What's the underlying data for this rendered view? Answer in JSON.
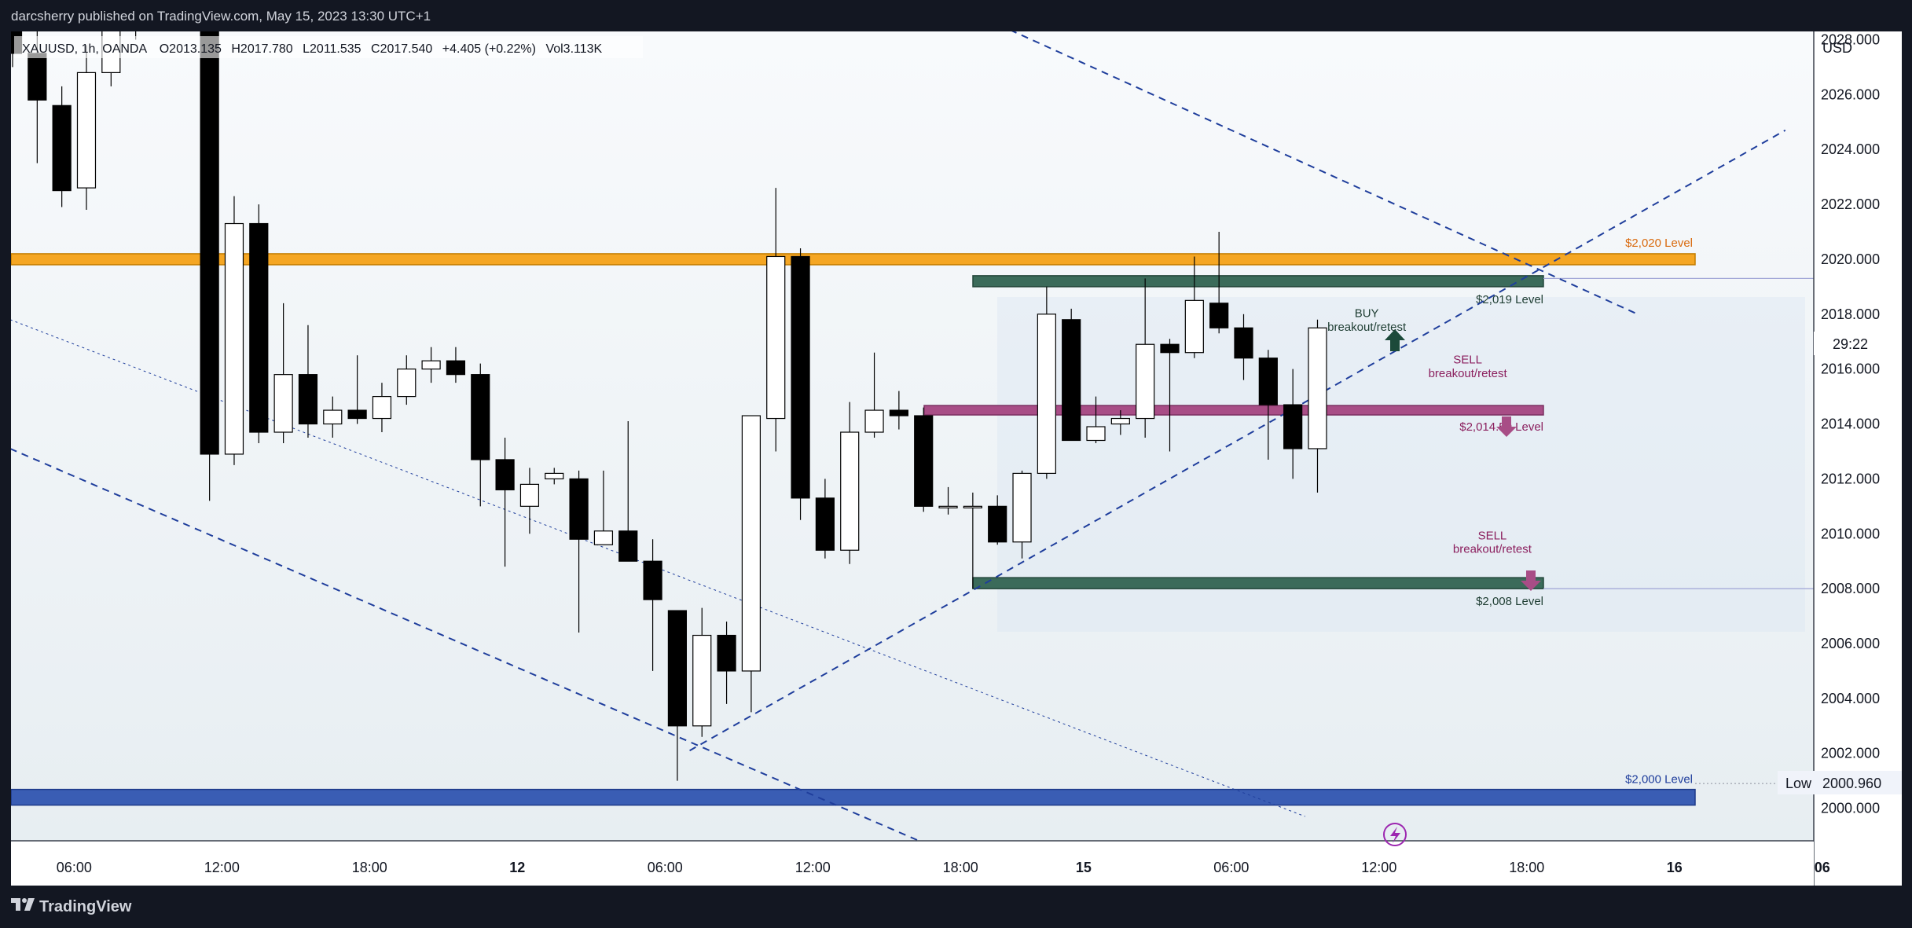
{
  "header": {
    "published_text": "darcsherry published on TradingView.com, May 15, 2023 13:30 UTC+1"
  },
  "ohlc": {
    "symbol": "XAUUSD, 1h, OANDA",
    "open": "O2013.135",
    "high": "H2017.780",
    "low": "L2011.535",
    "close": "C2017.540",
    "change": "+4.405 (+0.22%)",
    "volume": "Vol3.113K"
  },
  "price_axis": {
    "currency": "USD",
    "countdown": "29:22",
    "low_tag_label": "Low",
    "low_tag_value": "2000.960"
  },
  "footer": {
    "brand": "TradingView"
  },
  "colors": {
    "orange_level": "#f5a623",
    "green_level": "#3b6b5a",
    "pink_level": "#a84d86",
    "blue_level": "#3a5db4",
    "trend_line": "#1f3e9c",
    "background": "#131722"
  },
  "chart_data": {
    "type": "candlestick",
    "symbol": "XAUUSD",
    "timeframe": "1h",
    "ylim": [
      1998.5,
      2028.5
    ],
    "yticks": [
      2000,
      2002,
      2004,
      2006,
      2008,
      2010,
      2012,
      2014,
      2016,
      2018,
      2020,
      2022,
      2024,
      2026,
      2028
    ],
    "x_ticks": [
      {
        "label": "06:00",
        "x": 2.5
      },
      {
        "label": "12:00",
        "x": 8.5
      },
      {
        "label": "18:00",
        "x": 14.5
      },
      {
        "label": "12",
        "x": 20.5
      },
      {
        "label": "06:00",
        "x": 26.5
      },
      {
        "label": "12:00",
        "x": 32.5
      },
      {
        "label": "18:00",
        "x": 38.5
      },
      {
        "label": "15",
        "x": 43.5
      },
      {
        "label": "06:00",
        "x": 49.5
      },
      {
        "label": "12:00",
        "x": 55.5
      },
      {
        "label": "18:00",
        "x": 61.5
      },
      {
        "label": "16",
        "x": 67.5
      },
      {
        "label": "06",
        "x": 73.5
      }
    ],
    "candles": [
      [
        2031.0,
        2032.0,
        2027.0,
        2027.5
      ],
      [
        2027.5,
        2028.5,
        2023.5,
        2025.8
      ],
      [
        2025.6,
        2026.3,
        2021.9,
        2022.5
      ],
      [
        2022.6,
        2027.8,
        2021.8,
        2026.8
      ],
      [
        2026.8,
        2030.0,
        2026.3,
        2029.5
      ],
      [
        2029.0,
        2030.5,
        2028.0,
        2029.5
      ],
      [
        2029.5,
        2030.5,
        2028.5,
        2030.0
      ],
      [
        2030.0,
        2031.0,
        2029.5,
        2030.5
      ],
      [
        2030.5,
        2031.0,
        2011.2,
        2012.9
      ],
      [
        2012.9,
        2022.3,
        2012.5,
        2021.3
      ],
      [
        2021.3,
        2022.0,
        2013.3,
        2013.7
      ],
      [
        2013.7,
        2018.4,
        2013.3,
        2015.8
      ],
      [
        2015.8,
        2017.6,
        2013.5,
        2014.0
      ],
      [
        2014.0,
        2015.0,
        2013.5,
        2014.5
      ],
      [
        2014.5,
        2016.5,
        2014.0,
        2014.2
      ],
      [
        2014.2,
        2015.5,
        2013.7,
        2015.0
      ],
      [
        2015.0,
        2016.5,
        2014.7,
        2016.0
      ],
      [
        2016.0,
        2016.8,
        2015.5,
        2016.3
      ],
      [
        2016.3,
        2016.8,
        2015.5,
        2015.8
      ],
      [
        2015.8,
        2016.2,
        2011.0,
        2012.7
      ],
      [
        2012.7,
        2013.5,
        2008.8,
        2011.6
      ],
      [
        2011.0,
        2012.4,
        2010.0,
        2011.8
      ],
      [
        2012.0,
        2012.4,
        2011.8,
        2012.2
      ],
      [
        2012.0,
        2012.3,
        2006.4,
        2009.8
      ],
      [
        2009.6,
        2012.3,
        2009.6,
        2010.1
      ],
      [
        2010.1,
        2014.1,
        2009.0,
        2009.0
      ],
      [
        2009.0,
        2009.8,
        2005.0,
        2007.6
      ],
      [
        2007.2,
        2007.2,
        2001.0,
        2003.0
      ],
      [
        2003.0,
        2007.3,
        2002.6,
        2006.3
      ],
      [
        2006.3,
        2006.8,
        2003.8,
        2005.0
      ],
      [
        2005.0,
        2014.2,
        2003.5,
        2014.3
      ],
      [
        2014.2,
        2022.6,
        2013.0,
        2020.1
      ],
      [
        2020.1,
        2020.4,
        2010.5,
        2011.3
      ],
      [
        2011.3,
        2012.0,
        2009.1,
        2009.4
      ],
      [
        2009.4,
        2014.8,
        2008.9,
        2013.7
      ],
      [
        2013.7,
        2016.6,
        2013.5,
        2014.5
      ],
      [
        2014.5,
        2015.2,
        2013.8,
        2014.3
      ],
      [
        2014.3,
        2014.6,
        2010.8,
        2011.0
      ],
      [
        2011.0,
        2011.7,
        2010.7,
        2011.0
      ],
      [
        2011.0,
        2011.5,
        2008.0,
        2011.0
      ],
      [
        2011.0,
        2011.4,
        2009.6,
        2009.7
      ],
      [
        2009.7,
        2012.3,
        2009.1,
        2012.2
      ],
      [
        2012.2,
        2019.0,
        2012.0,
        2018.0
      ],
      [
        2017.8,
        2018.2,
        2013.4,
        2013.4
      ],
      [
        2013.4,
        2015.0,
        2013.3,
        2013.9
      ],
      [
        2014.0,
        2014.5,
        2013.6,
        2014.2
      ],
      [
        2014.2,
        2019.3,
        2013.5,
        2016.9
      ],
      [
        2016.9,
        2017.1,
        2013.0,
        2016.6
      ],
      [
        2016.6,
        2020.1,
        2016.4,
        2018.5
      ],
      [
        2018.4,
        2021.0,
        2017.3,
        2017.5
      ],
      [
        2017.5,
        2018.0,
        2015.6,
        2016.4
      ],
      [
        2016.4,
        2016.7,
        2012.7,
        2014.7
      ],
      [
        2014.7,
        2016.0,
        2012.0,
        2013.1
      ],
      [
        2013.1,
        2017.8,
        2011.5,
        2017.5
      ]
    ],
    "levels": [
      {
        "label": "$2,020 Level",
        "price": 2020.0
      },
      {
        "label": "$2,019 Level",
        "price": 2019.2
      },
      {
        "label": "$2,014.50 Level",
        "price": 2014.5
      },
      {
        "label": "$2,008 Level",
        "price": 2008.2
      },
      {
        "label": "$2,000 Level",
        "price": 2000.4
      }
    ],
    "annotations": [
      {
        "text": "BUY",
        "x": 55.0,
        "y": 2017.9
      },
      {
        "text": "breakout/retest",
        "x": 55.0,
        "y": 2017.4
      },
      {
        "text": "SELL",
        "x": 59.1,
        "y": 2016.2
      },
      {
        "text": "breakout/retest",
        "x": 59.1,
        "y": 2015.7
      },
      {
        "text": "SELL",
        "x": 60.1,
        "y": 2009.8
      },
      {
        "text": "breakout/retest",
        "x": 60.1,
        "y": 2009.3
      }
    ],
    "trend_lines": [
      {
        "style": "dashed",
        "from": [
          34.0,
          2031.0
        ],
        "to": [
          66.0,
          2018.0
        ]
      },
      {
        "style": "dashed",
        "from": [
          -0.1,
          2013.1
        ],
        "to": [
          41.5,
          1997.0
        ]
      },
      {
        "style": "dashed",
        "from": [
          27.5,
          2002.1
        ],
        "to": [
          72.0,
          2024.7
        ]
      },
      {
        "style": "dotted",
        "from": [
          -0.1,
          2017.8
        ],
        "to": [
          52.5,
          1999.7
        ]
      }
    ]
  }
}
